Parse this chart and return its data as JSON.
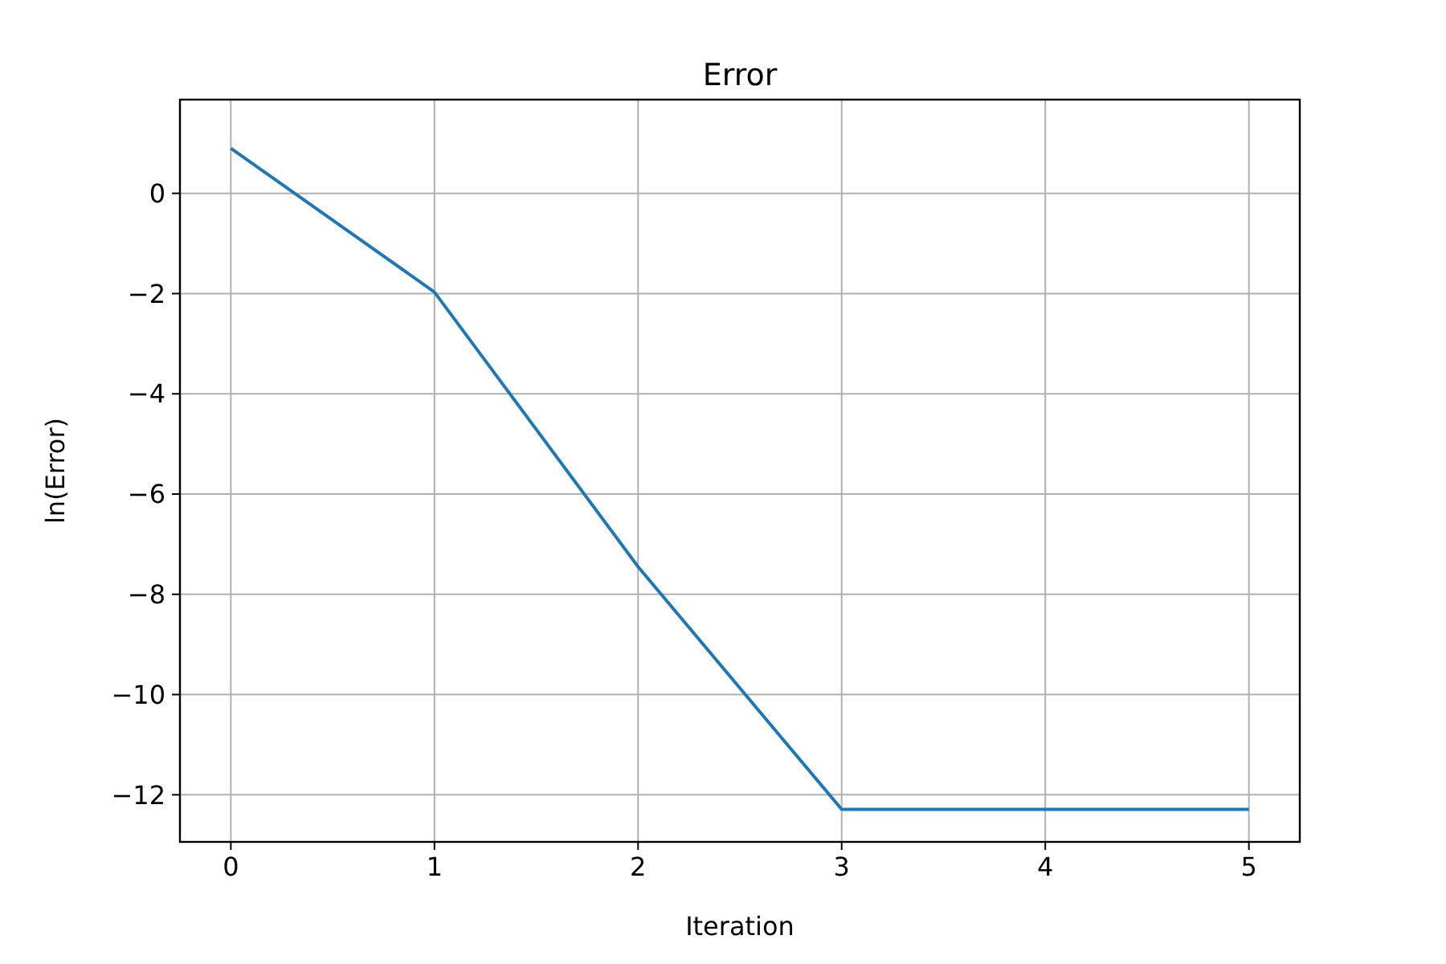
{
  "chart_data": {
    "type": "line",
    "title": "Error",
    "xlabel": "Iteration",
    "ylabel": "ln(Error)",
    "x": [
      0,
      1,
      2,
      3,
      4,
      5
    ],
    "series": [
      {
        "color": "#1f77b4",
        "values": [
          0.9,
          -1.97,
          -7.45,
          -12.29,
          -12.29,
          -12.29
        ]
      }
    ],
    "xlim": [
      -0.25,
      5.25
    ],
    "xticks": [
      0,
      1,
      2,
      3,
      4,
      5
    ],
    "ylim": [
      -12.94,
      1.87
    ],
    "yticks": [
      {
        "value": 0,
        "label": "0"
      },
      {
        "value": -2,
        "label": "−2"
      },
      {
        "value": -4,
        "label": "−4"
      },
      {
        "value": -6,
        "label": "−6"
      },
      {
        "value": -8,
        "label": "−8"
      },
      {
        "value": -10,
        "label": "−10"
      },
      {
        "value": -12,
        "label": "−12"
      }
    ],
    "grid": true,
    "marker": "none",
    "line_style": "solid"
  }
}
